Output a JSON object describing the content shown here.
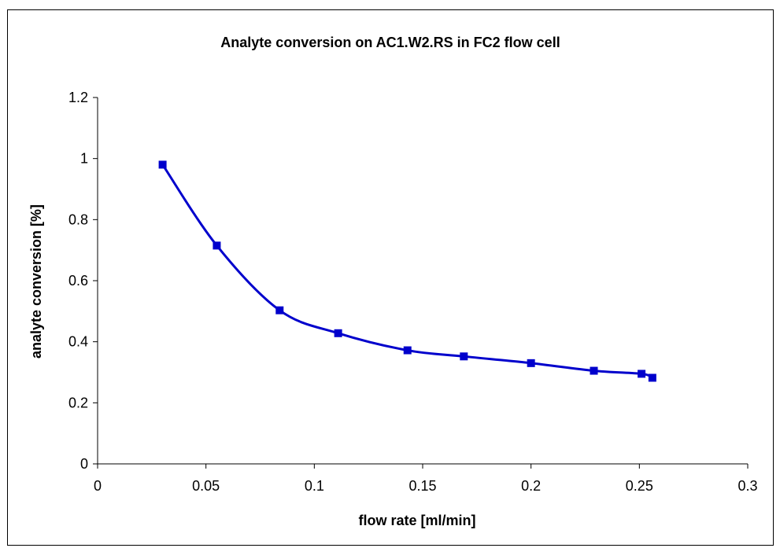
{
  "chart_data": {
    "type": "line",
    "title": "Analyte conversion on AC1.W2.RS in FC2 flow cell",
    "xlabel": "flow rate [ml/min]",
    "ylabel": "analyte conversion [%]",
    "xlim": [
      0,
      0.3
    ],
    "ylim": [
      0,
      1.2
    ],
    "x_ticks": [
      "0",
      "0.05",
      "0.1",
      "0.15",
      "0.2",
      "0.25",
      "0.3"
    ],
    "y_ticks": [
      "0",
      "0.2",
      "0.4",
      "0.6",
      "0.8",
      "1",
      "1.2"
    ],
    "grid": false,
    "legend": "none",
    "series": [
      {
        "color": "#0000CC",
        "marker": "square",
        "smooth": true,
        "x": [
          0.03,
          0.055,
          0.084,
          0.111,
          0.143,
          0.169,
          0.2,
          0.229,
          0.251,
          0.256
        ],
        "y": [
          0.98,
          0.715,
          0.503,
          0.428,
          0.372,
          0.352,
          0.33,
          0.305,
          0.295,
          0.282
        ]
      }
    ]
  }
}
